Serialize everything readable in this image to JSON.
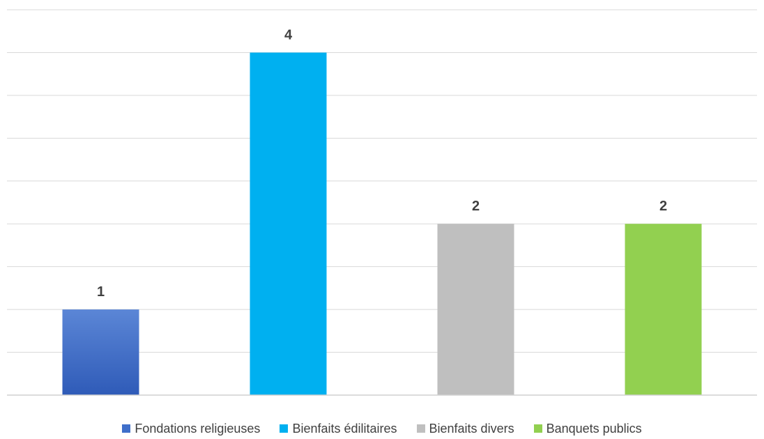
{
  "chart_data": {
    "type": "bar",
    "categories": [
      "Fondations religieuses",
      "Bienfaits édilitaires",
      "Bienfaits divers",
      "Banquets publics"
    ],
    "values": [
      1,
      4,
      2,
      2
    ],
    "colors": [
      "#3f6fca",
      "#00b0f0",
      "#bfbfbf",
      "#92d050"
    ],
    "ylim": [
      0,
      4.5
    ],
    "gridline_step": 0.5,
    "grid": true,
    "data_labels": true,
    "legend_position": "bottom",
    "title": "",
    "xlabel": "",
    "ylabel": ""
  }
}
